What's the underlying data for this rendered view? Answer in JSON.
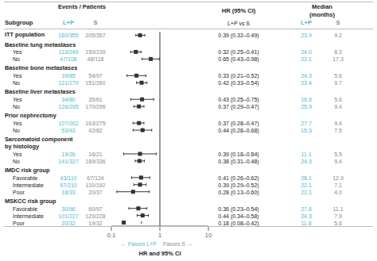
{
  "chart_data": {
    "type": "forest",
    "xlabel": "HR and 95% CI",
    "log": "x",
    "xlim": [
      0.1,
      10
    ],
    "xticks": [
      0.1,
      1,
      10
    ],
    "grid": false,
    "reference_line": 1,
    "series": [
      {
        "name": "L+P",
        "color": "#4ab8d0"
      },
      {
        "name": "S",
        "color": "#888888"
      }
    ],
    "headers": {
      "label": "Subgroup",
      "events": "Events / Patients",
      "hr": "HR (95% CI)",
      "hr_sub": "L+P vs S",
      "median": "Median",
      "median_unit": "(months)"
    },
    "annotations": [
      {
        "text": "← Favors L+P",
        "color": "#4ab8d0"
      },
      {
        "text": "Favors S →",
        "color": "#888888"
      }
    ],
    "overall": {
      "label": "ITT population",
      "events": [
        "160/355",
        "205/357"
      ],
      "hr": 0.39,
      "ci": [
        0.32,
        0.49
      ],
      "hr_label": "0.39 (0.32–0.49)",
      "medians": [
        "23.9",
        "9.2"
      ]
    },
    "groups": [
      {
        "name": "Baseline lung metastases",
        "rows": [
          {
            "label": "Yes",
            "events": [
              "113/249",
              "150/239"
            ],
            "hr": 0.32,
            "ci": [
              0.25,
              0.41
            ],
            "hr_label": "0.32 (0.25–0.41)",
            "medians": [
              "24.0",
              "8.3"
            ]
          },
          {
            "label": "No",
            "events": [
              "47/106",
              "48/118"
            ],
            "hr": 0.65,
            "ci": [
              0.43,
              0.98
            ],
            "hr_label": "0.65 (0.43–0.98)",
            "medians": [
              "22.1",
              "17.3"
            ]
          }
        ]
      },
      {
        "name": "Baseline bone metastases",
        "rows": [
          {
            "label": "Yes",
            "events": [
              "39/85",
              "54/97"
            ],
            "hr": 0.33,
            "ci": [
              0.21,
              0.52
            ],
            "hr_label": "0.33 (0.21–0.52)",
            "medians": [
              "24.3",
              "5.6"
            ]
          },
          {
            "label": "No",
            "events": [
              "121/270",
              "151/260"
            ],
            "hr": 0.42,
            "ci": [
              0.33,
              0.54
            ],
            "hr_label": "0.42 (0.33–0.54)",
            "medians": [
              "23.4",
              "9.7"
            ]
          }
        ]
      },
      {
        "name": "Baseline liver metastases",
        "rows": [
          {
            "label": "Yes",
            "events": [
              "34/80",
              "35/61"
            ],
            "hr": 0.43,
            "ci": [
              0.25,
              0.75
            ],
            "hr_label": "0.43 (0.25–0.75)",
            "medians": [
              "16.6",
              "5.6"
            ]
          },
          {
            "label": "No",
            "events": [
              "126/295",
              "170/296"
            ],
            "hr": 0.37,
            "ci": [
              0.29,
              0.47
            ],
            "hr_label": "0.37 (0.29–0.47)",
            "medians": [
              "25.9",
              "9.4"
            ]
          }
        ]
      },
      {
        "name": "Prior nephrectomy",
        "rows": [
          {
            "label": "Yes",
            "events": [
              "107/262",
              "163/275"
            ],
            "hr": 0.37,
            "ci": [
              0.28,
              0.47
            ],
            "hr_label": "0.37 (0.28–0.47)",
            "medians": [
              "27.7",
              "9.4"
            ]
          },
          {
            "label": "No",
            "events": [
              "53/93",
              "42/82"
            ],
            "hr": 0.44,
            "ci": [
              0.28,
              0.68
            ],
            "hr_label": "0.44 (0.28–0.68)",
            "medians": [
              "15.3",
              "7.5"
            ]
          }
        ]
      },
      {
        "name": [
          "Sarcomatoid component",
          "by histology"
        ],
        "rows": [
          {
            "label": "Yes",
            "events": [
              "19/26",
              "16/21"
            ],
            "hr": 0.39,
            "ci": [
              0.18,
              0.84
            ],
            "hr_label": "0.39 (0.18–0.84)",
            "medians": [
              "11.1",
              "5.5"
            ]
          },
          {
            "label": "No",
            "events": [
              "141/327",
              "189/336"
            ],
            "hr": 0.38,
            "ci": [
              0.31,
              0.48
            ],
            "hr_label": "0.38 (0.31–0.48)",
            "medians": [
              "24.3",
              "9.4"
            ]
          }
        ]
      },
      {
        "name": "IMDC risk group",
        "rows": [
          {
            "label": "Favorable",
            "events": [
              "43/110",
              "67/124"
            ],
            "hr": 0.41,
            "ci": [
              0.26,
              0.62
            ],
            "hr_label": "0.41 (0.26–0.62)",
            "medians": [
              "28.1",
              "12.9"
            ]
          },
          {
            "label": "Intermediate",
            "events": [
              "97/210",
              "110/192"
            ],
            "hr": 0.39,
            "ci": [
              0.29,
              0.52
            ],
            "hr_label": "0.39 (0.29–0.52)",
            "medians": [
              "22.1",
              "7.1"
            ]
          },
          {
            "label": "Poor",
            "events": [
              "18/33",
              "20/37"
            ],
            "hr": 0.28,
            "ci": [
              0.13,
              0.6
            ],
            "hr_label": "0.28 (0.13–0.60)",
            "medians": [
              "22.1",
              "4.0"
            ]
          }
        ]
      },
      {
        "name": "MSKCC risk group",
        "rows": [
          {
            "label": "Favorable",
            "events": [
              "30/96",
              "60/97"
            ],
            "hr": 0.36,
            "ci": [
              0.23,
              0.54
            ],
            "hr_label": "0.36 (0.23–0.54)",
            "medians": [
              "27.6",
              "11.1"
            ]
          },
          {
            "label": "Intermediate",
            "events": [
              "101/227",
              "120/228"
            ],
            "hr": 0.44,
            "ci": [
              0.34,
              0.58
            ],
            "hr_label": "0.44 (0.34–0.58)",
            "medians": [
              "24.3",
              "7.9"
            ]
          },
          {
            "label": "Poor",
            "events": [
              "20/32",
              "19/32"
            ],
            "hr": 0.18,
            "ci": [
              0.08,
              0.42
            ],
            "hr_label": "0.18 (0.08–0.42)",
            "medians": [
              "11.8",
              "5.6"
            ]
          }
        ]
      }
    ]
  }
}
